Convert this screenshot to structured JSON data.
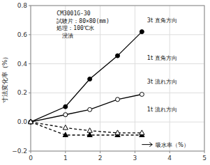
{
  "chart_data": {
    "type": "line",
    "title": [
      "CM3001G-30",
      "試験片：80×80(mm)",
      "処理：100℃水",
      "　浸漬"
    ],
    "ylabel": "寸法変化率（%）",
    "x": [
      0,
      1.0,
      1.7,
      2.5,
      3.2
    ],
    "series": [
      {
        "values": [
          0,
          0.105,
          0.295,
          0.455,
          0.62
        ],
        "color": "black",
        "marker": "circle",
        "line_style": "solid"
      },
      {
        "values": [
          0,
          -0.09,
          -0.09,
          -0.09,
          -0.09
        ],
        "color": "black",
        "marker": "triangle",
        "line_style": "dashed"
      },
      {
        "values": [
          0,
          0.05,
          0.085,
          0.155,
          0.19
        ],
        "color": "black",
        "marker": "open-circle",
        "line_style": "solid"
      },
      {
        "values": [
          0,
          -0.04,
          -0.06,
          -0.075,
          -0.075
        ],
        "color": "black",
        "marker": "open-triangle",
        "line_style": "dashed"
      }
    ],
    "xlim": [
      0,
      5
    ],
    "ylim": [
      -0.2,
      0.8
    ],
    "xticks": [
      0,
      1,
      2,
      3,
      4,
      5
    ],
    "yticks": [
      {
        "value": -0.2,
        "label": "−0.2"
      },
      {
        "value": 0.0,
        "label": "0.0"
      },
      0.2,
      0.4,
      0.6,
      0.8
    ],
    "grid": true,
    "annotations": [
      {
        "text": "3t 直角方向",
        "x": 3.35,
        "y": 0.68
      },
      {
        "text": "1t 直角方向",
        "x": 3.35,
        "y": 0.42
      },
      {
        "text": "3t 流れ方向",
        "x": 3.35,
        "y": 0.26
      },
      {
        "text": "1t 流れ方向",
        "x": 3.35,
        "y": 0.07
      },
      {
        "text": "吸水率（%）",
        "x": 3.6,
        "y": -0.155,
        "arrow_from": 3.2,
        "arrow_to": 3.5
      }
    ]
  }
}
